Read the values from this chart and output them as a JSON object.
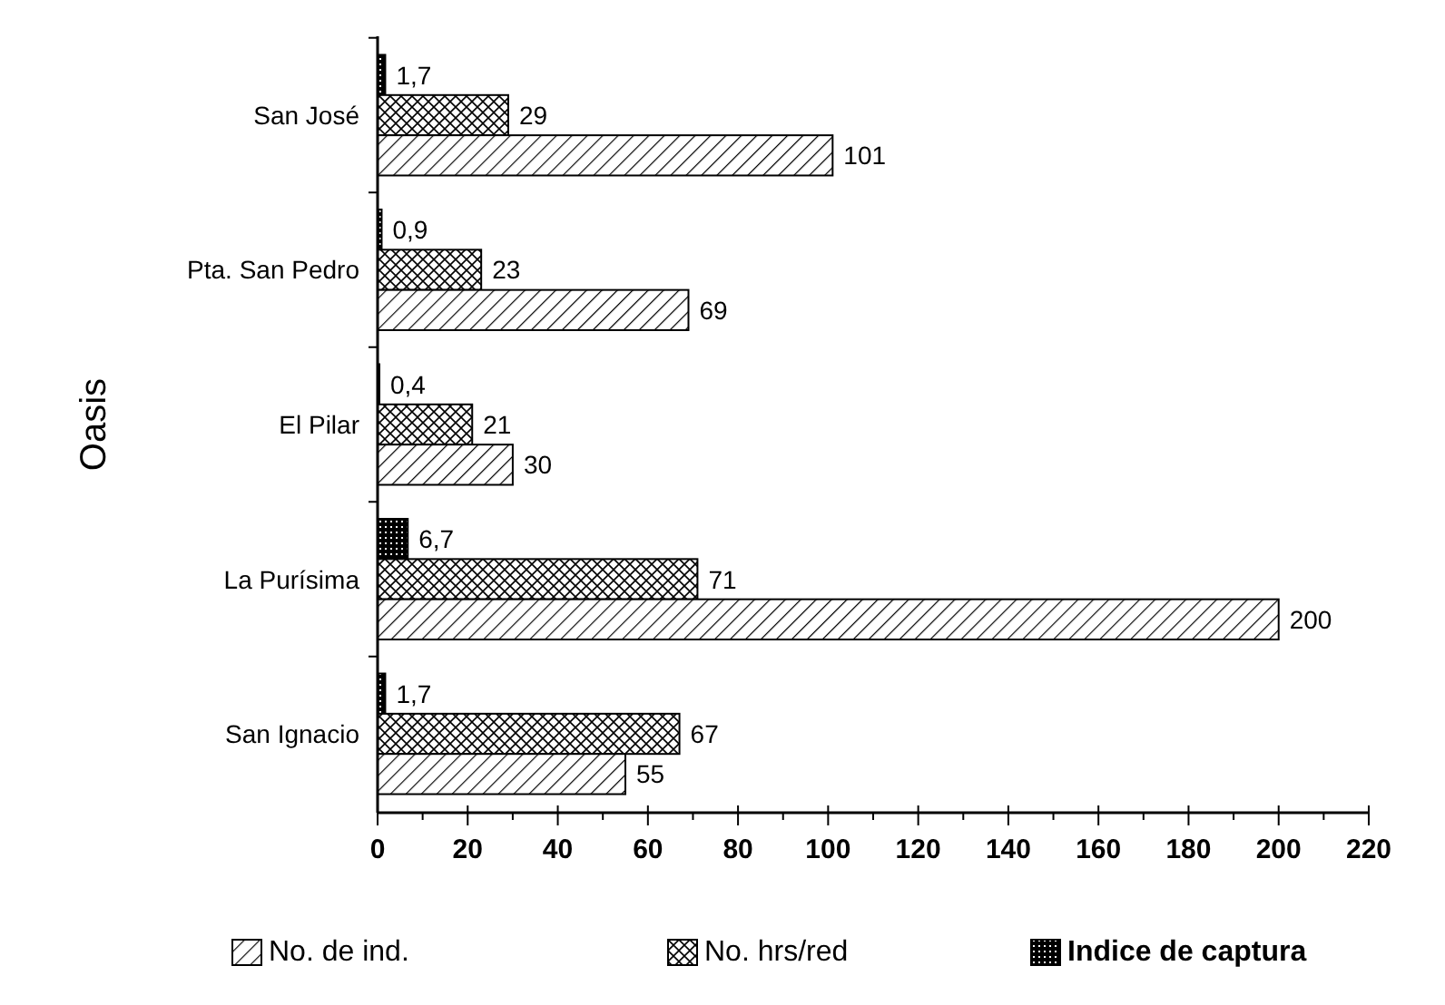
{
  "chart_data": {
    "type": "bar",
    "orientation": "horizontal",
    "ylabel": "Oasis",
    "categories": [
      "San José",
      "Pta. San Pedro",
      "El Pilar",
      "La Purísima",
      "San Ignacio"
    ],
    "series": [
      {
        "name": "Indice de captura",
        "color": "#000000",
        "values": [
          1.7,
          0.9,
          0.4,
          6.7,
          1.7
        ],
        "value_labels": [
          "1,7",
          "0,9",
          "0,4",
          "6,7",
          "1,7"
        ]
      },
      {
        "name": "No. hrs/red",
        "color": "#000000",
        "values": [
          29,
          23,
          21,
          71,
          67
        ]
      },
      {
        "name": "No. de ind.",
        "color": "#000000",
        "values": [
          101,
          69,
          30,
          200,
          55
        ]
      }
    ],
    "xlim": [
      0,
      220
    ],
    "xticks": [
      0,
      20,
      40,
      60,
      80,
      100,
      120,
      140,
      160,
      180,
      200,
      220
    ],
    "data_labels": true,
    "legend": "bottom",
    "grid": false
  }
}
